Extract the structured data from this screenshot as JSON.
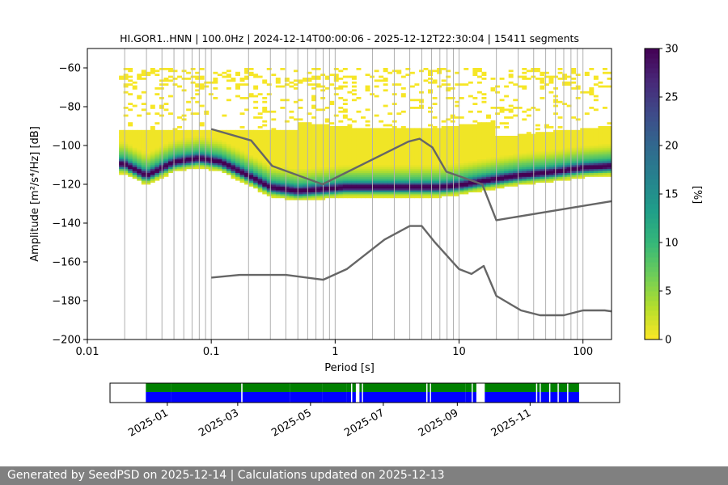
{
  "chart_data": [
    {
      "type": "heatmap",
      "title": "HI.GOR1..HNN | 100.0Hz | 2024-12-14T00:00:06 - 2025-12-12T22:30:04 | 15411 segments",
      "xlabel": "Period [s]",
      "ylabel": "Amplitude [m²/s⁴/Hz] [dB]",
      "x_scale": "log",
      "xlim": [
        0.01,
        170
      ],
      "ylim": [
        -200,
        -50
      ],
      "x_ticks": [
        0.01,
        0.1,
        1,
        10,
        100
      ],
      "x_tick_labels": [
        "0.01",
        "0.1",
        "1",
        "10",
        "100"
      ],
      "y_ticks": [
        -200,
        -180,
        -160,
        -140,
        -120,
        -100,
        -80,
        -60
      ],
      "y_tick_labels": [
        "−200",
        "−180",
        "−160",
        "−140",
        "−120",
        "−100",
        "−80",
        "−60"
      ],
      "grid": "vertical lines at log decade subdivisions",
      "colorbar": {
        "label": "[%]",
        "colormap": "viridis_r",
        "range": [
          0,
          30
        ],
        "ticks": [
          0,
          5,
          10,
          15,
          20,
          25,
          30
        ]
      },
      "psd_mode_curve": {
        "x": [
          0.02,
          0.03,
          0.05,
          0.08,
          0.12,
          0.2,
          0.3,
          0.5,
          0.8,
          1.2,
          2,
          3,
          4,
          5,
          7,
          10,
          15,
          30,
          60,
          100,
          170
        ],
        "y": [
          -110,
          -116,
          -109,
          -107,
          -109,
          -116,
          -122,
          -124,
          -123,
          -122,
          -122,
          -122,
          -122,
          -122,
          -122,
          -121,
          -119,
          -116,
          -114,
          -112,
          -111
        ]
      },
      "series": [
        {
          "name": "",
          "x": [
            0.1,
            0.21,
            0.31,
            0.79,
            3.9,
            4.8,
            6.1,
            7.9,
            15.4,
            20,
            170
          ],
          "y": [
            -91.5,
            -97.4,
            -110.5,
            -120,
            -98,
            -96.5,
            -101,
            -113.5,
            -120,
            -138.5,
            -128.7
          ]
        },
        {
          "name": "",
          "x": [
            0.1,
            0.17,
            0.4,
            0.8,
            1.24,
            2.5,
            4,
            5,
            6.3,
            10,
            12.6,
            15.8,
            20,
            31.6,
            45,
            70,
            100,
            150,
            170
          ],
          "y": [
            -168.1,
            -166.7,
            -166.7,
            -169.2,
            -163.7,
            -148.5,
            -141.5,
            -141.5,
            -149.5,
            -163.7,
            -166.2,
            -162.1,
            -177.5,
            -185,
            -187.5,
            -187.5,
            -185,
            -185,
            -185.5
          ]
        }
      ]
    },
    {
      "type": "timeline",
      "x_tick_labels": [
        "2025-01",
        "2025-03",
        "2025-05",
        "2025-07",
        "2025-09",
        "2025-11"
      ],
      "x_ticks": [
        "2025-01-01",
        "2025-03-01",
        "2025-05-01",
        "2025-07-01",
        "2025-09-01",
        "2025-11-01"
      ],
      "xlim": [
        "2024-11-14",
        "2026-01-15"
      ],
      "colors": {
        "available": "#008000",
        "used": "#0000ff"
      },
      "segments": [
        [
          "2024-12-14",
          "2025-01-04"
        ],
        [
          "2025-01-04",
          "2025-03-04"
        ],
        [
          "2025-03-05",
          "2025-03-15"
        ],
        [
          "2025-03-15",
          "2025-04-14"
        ],
        [
          "2025-04-14",
          "2025-05-11"
        ],
        [
          "2025-05-11",
          "2025-05-31"
        ],
        [
          "2025-05-31",
          "2025-06-04"
        ],
        [
          "2025-06-05",
          "2025-06-08"
        ],
        [
          "2025-06-11",
          "2025-06-13"
        ],
        [
          "2025-06-14",
          "2025-08-05"
        ],
        [
          "2025-08-05",
          "2025-08-06"
        ],
        [
          "2025-08-07",
          "2025-08-09"
        ],
        [
          "2025-08-10",
          "2025-09-08"
        ],
        [
          "2025-09-08",
          "2025-09-13"
        ],
        [
          "2025-09-14",
          "2025-09-17"
        ],
        [
          "2025-09-24",
          "2025-11-06"
        ],
        [
          "2025-11-07",
          "2025-11-09"
        ],
        [
          "2025-11-10",
          "2025-11-17"
        ],
        [
          "2025-11-18",
          "2025-11-24"
        ],
        [
          "2025-11-25",
          "2025-12-02"
        ],
        [
          "2025-12-03",
          "2025-12-12"
        ]
      ]
    }
  ],
  "footer": {
    "text": "Generated by SeedPSD on 2025-12-14 | Calculations updated on 2025-12-13"
  }
}
